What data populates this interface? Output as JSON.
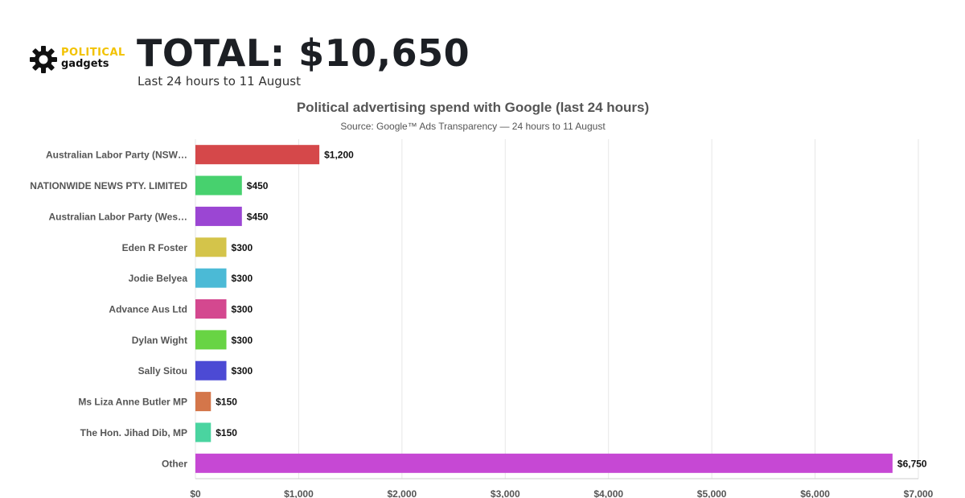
{
  "header": {
    "logo_top": "POLITICAL",
    "logo_bottom": "gadgets",
    "logo_icon": "gear-icon",
    "total": "TOTAL: $10,650",
    "subtitle": "Last 24 hours to 11 August"
  },
  "chart_data": {
    "type": "bar",
    "orientation": "horizontal",
    "title": "Political advertising spend with Google (last 24 hours)",
    "subtitle": "Source: Google™ Ads Transparency — 24 hours to 11 August",
    "categories": [
      "Australian Labor Party (NSW…",
      "NATIONWIDE NEWS PTY. LIMITED",
      "Australian Labor Party (Wes…",
      "Eden R Foster",
      "Jodie Belyea",
      "Advance Aus Ltd",
      "Dylan Wight",
      "Sally Sitou",
      "Ms Liza Anne Butler MP",
      "The Hon. Jihad Dib, MP",
      "Other"
    ],
    "values": [
      1200,
      450,
      450,
      300,
      300,
      300,
      300,
      300,
      150,
      150,
      6750
    ],
    "data_labels": [
      "$1,200",
      "$450",
      "$450",
      "$300",
      "$300",
      "$300",
      "$300",
      "$300",
      "$150",
      "$150",
      "$6,750"
    ],
    "colors": [
      "#d5484a",
      "#47d16e",
      "#9b46d3",
      "#d4c44a",
      "#4bbad6",
      "#d4488f",
      "#68d444",
      "#4c4ad4",
      "#d4764a",
      "#4ad4a0",
      "#c648d4"
    ],
    "xlim": [
      0,
      7000
    ],
    "x_ticks": [
      0,
      1000,
      2000,
      3000,
      4000,
      5000,
      6000,
      7000
    ],
    "x_tick_labels": [
      "$0",
      "$1,000",
      "$2,000",
      "$3,000",
      "$4,000",
      "$5,000",
      "$6,000",
      "$7,000"
    ],
    "grid": true,
    "legend": "none"
  }
}
